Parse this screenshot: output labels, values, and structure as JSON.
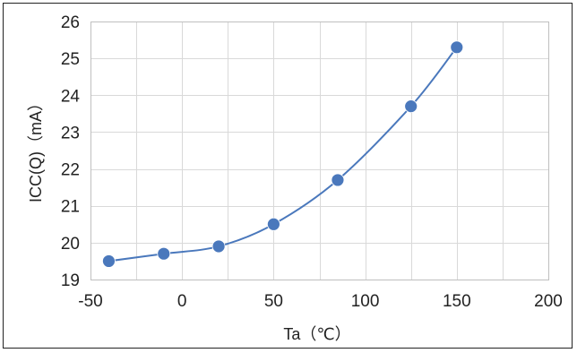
{
  "chart_data": {
    "type": "scatter",
    "title": "",
    "xlabel": "Ta（℃）",
    "ylabel": "ICC(Q)（mA）",
    "xlim": [
      -50,
      200
    ],
    "ylim": [
      19,
      26
    ],
    "x_ticks": [
      -50,
      0,
      50,
      100,
      150,
      200
    ],
    "y_ticks": [
      19,
      20,
      21,
      22,
      23,
      24,
      25,
      26
    ],
    "grid": true,
    "legend": "none",
    "smooth_line": true,
    "series": [
      {
        "color": "#4a78bc",
        "points": [
          {
            "x": -40,
            "y": 19.5
          },
          {
            "x": -10,
            "y": 19.7
          },
          {
            "x": 20,
            "y": 19.9
          },
          {
            "x": 50,
            "y": 20.5
          },
          {
            "x": 85,
            "y": 21.7
          },
          {
            "x": 125,
            "y": 23.7
          },
          {
            "x": 150,
            "y": 25.3
          }
        ]
      }
    ]
  },
  "colors": {
    "series": "#4a78bc",
    "grid": "#d9d9d9",
    "axis_frame": "#bfbfbf",
    "text": "#222222"
  }
}
